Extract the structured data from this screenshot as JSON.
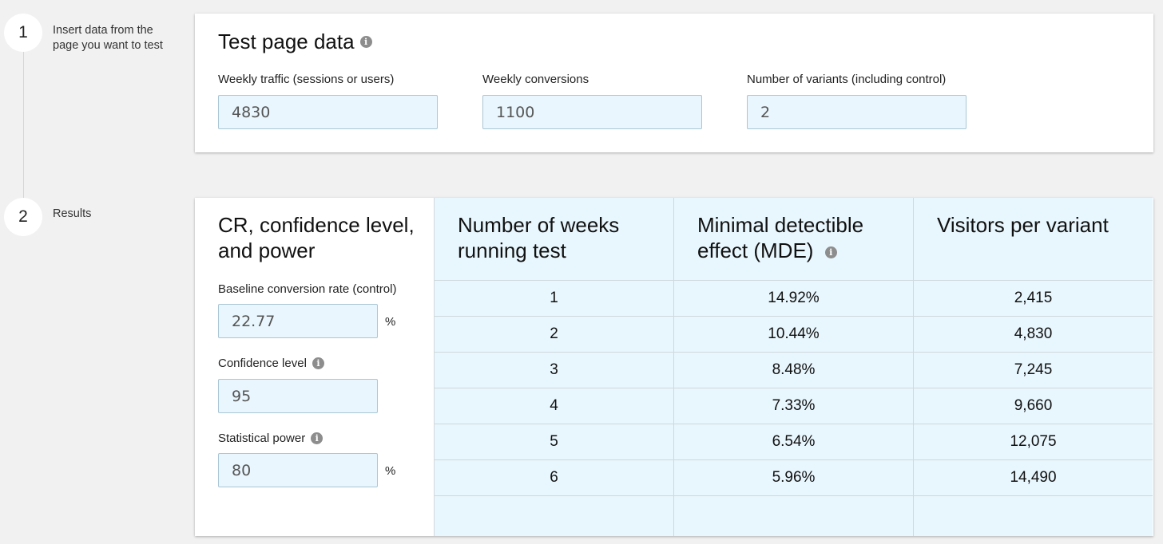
{
  "steps": [
    {
      "number": "1",
      "label": "Insert data from the page you want to test"
    },
    {
      "number": "2",
      "label": "Results"
    }
  ],
  "test_page": {
    "title": "Test page data",
    "info_icon": "info-icon",
    "fields": [
      {
        "label": "Weekly traffic (sessions or users)",
        "value": "4830"
      },
      {
        "label": "Weekly conversions",
        "value": "1100"
      },
      {
        "label": "Number of variants (including control)",
        "value": "2"
      }
    ]
  },
  "results": {
    "settings_title": "CR, confidence level, and power",
    "baseline": {
      "label": "Baseline conversion rate (control)",
      "value": "22.77",
      "unit": "%"
    },
    "confidence": {
      "label": "Confidence level",
      "value": "95"
    },
    "power": {
      "label": "Statistical power",
      "value": "80",
      "unit": "%"
    },
    "columns": [
      {
        "header": "Number of weeks running test",
        "values": [
          "1",
          "2",
          "3",
          "4",
          "5",
          "6"
        ]
      },
      {
        "header": "Minimal detectible effect (MDE)",
        "values": [
          "14.92%",
          "10.44%",
          "8.48%",
          "7.33%",
          "6.54%",
          "5.96%"
        ]
      },
      {
        "header": "Visitors per variant",
        "values": [
          "2,415",
          "4,830",
          "7,245",
          "9,660",
          "12,075",
          "14,490"
        ]
      }
    ]
  },
  "colors": {
    "background": "#f1f1f1",
    "input_fill": "#e9f6fd",
    "table_fill": "#e8f6fd"
  }
}
